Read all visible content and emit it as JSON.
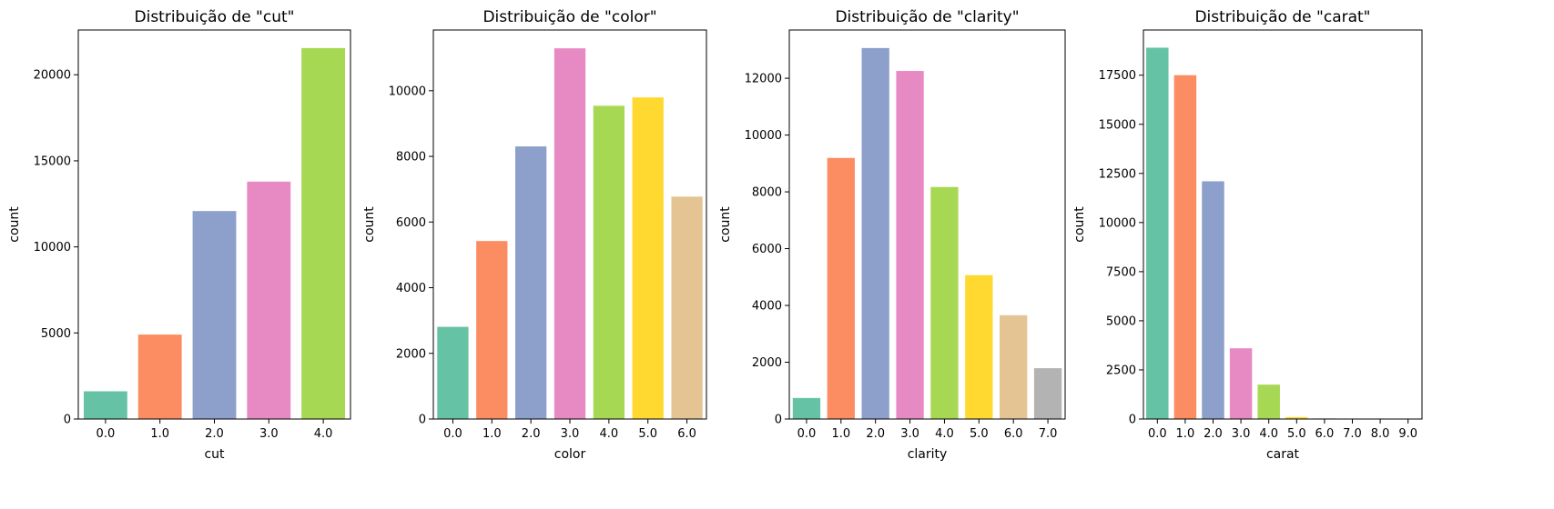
{
  "palette": [
    "#66c2a5",
    "#fc8d62",
    "#8da0cb",
    "#e78ac3",
    "#a6d854",
    "#ffd92f",
    "#e5c494",
    "#b3b3b3"
  ],
  "chart_data": [
    {
      "type": "bar",
      "title": "Distribuição de \"cut\"",
      "xlabel": "cut",
      "ylabel": "count",
      "categories": [
        "0.0",
        "1.0",
        "2.0",
        "3.0",
        "4.0"
      ],
      "values": [
        1610,
        4906,
        12082,
        13791,
        21551
      ],
      "ylim": [
        0,
        22600
      ],
      "yticks": [
        0,
        5000,
        10000,
        15000,
        20000
      ],
      "grid": false
    },
    {
      "type": "bar",
      "title": "Distribuição de \"color\"",
      "xlabel": "color",
      "ylabel": "count",
      "categories": [
        "0.0",
        "1.0",
        "2.0",
        "3.0",
        "4.0",
        "5.0",
        "6.0"
      ],
      "values": [
        2808,
        5422,
        8304,
        11292,
        9542,
        9797,
        6775
      ],
      "ylim": [
        0,
        11850
      ],
      "yticks": [
        0,
        2000,
        4000,
        6000,
        8000,
        10000
      ],
      "grid": false
    },
    {
      "type": "bar",
      "title": "Distribuição de \"clarity\"",
      "xlabel": "clarity",
      "ylabel": "count",
      "categories": [
        "0.0",
        "1.0",
        "2.0",
        "3.0",
        "4.0",
        "5.0",
        "6.0",
        "7.0"
      ],
      "values": [
        741,
        9194,
        13065,
        12258,
        8171,
        5066,
        3655,
        1790
      ],
      "ylim": [
        0,
        13700
      ],
      "yticks": [
        0,
        2000,
        4000,
        6000,
        8000,
        10000,
        12000
      ],
      "grid": false
    },
    {
      "type": "bar",
      "title": "Distribuição de \"carat\"",
      "xlabel": "carat",
      "ylabel": "count",
      "categories": [
        "0.0",
        "1.0",
        "2.0",
        "3.0",
        "4.0",
        "5.0",
        "6.0",
        "7.0",
        "8.0",
        "9.0"
      ],
      "values": [
        18900,
        17500,
        12100,
        3600,
        1750,
        100,
        30,
        10,
        5,
        3
      ],
      "ylim": [
        0,
        19800
      ],
      "yticks": [
        0,
        2500,
        5000,
        7500,
        10000,
        12500,
        15000,
        17500
      ],
      "grid": false
    }
  ]
}
